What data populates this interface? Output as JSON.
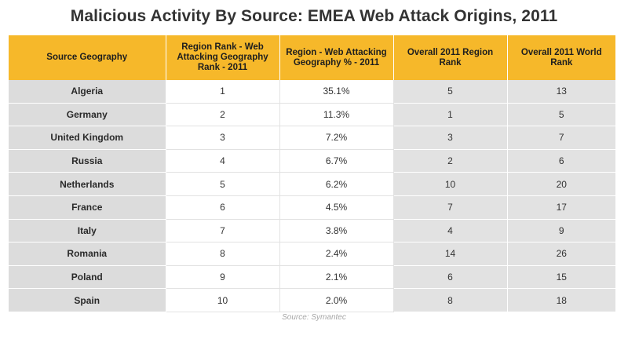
{
  "title": "Malicious Activity By Source: EMEA Web Attack Origins, 2011",
  "chart_data": {
    "type": "table",
    "columns": [
      "Source Geography",
      "Region Rank - Web Attacking Geography Rank - 2011",
      "Region - Web Attacking Geography % - 2011",
      "Overall 2011 Region Rank",
      "Overall 2011 World Rank"
    ],
    "rows": [
      [
        "Algeria",
        "1",
        "35.1%",
        "5",
        "13"
      ],
      [
        "Germany",
        "2",
        "11.3%",
        "1",
        "5"
      ],
      [
        "United Kingdom",
        "3",
        "7.2%",
        "3",
        "7"
      ],
      [
        "Russia",
        "4",
        "6.7%",
        "2",
        "6"
      ],
      [
        "Netherlands",
        "5",
        "6.2%",
        "10",
        "20"
      ],
      [
        "France",
        "6",
        "4.5%",
        "7",
        "17"
      ],
      [
        "Italy",
        "7",
        "3.8%",
        "4",
        "9"
      ],
      [
        "Romania",
        "8",
        "2.4%",
        "14",
        "26"
      ],
      [
        "Poland",
        "9",
        "2.1%",
        "6",
        "15"
      ],
      [
        "Spain",
        "10",
        "2.0%",
        "8",
        "18"
      ]
    ],
    "source": "Source: Symantec"
  }
}
